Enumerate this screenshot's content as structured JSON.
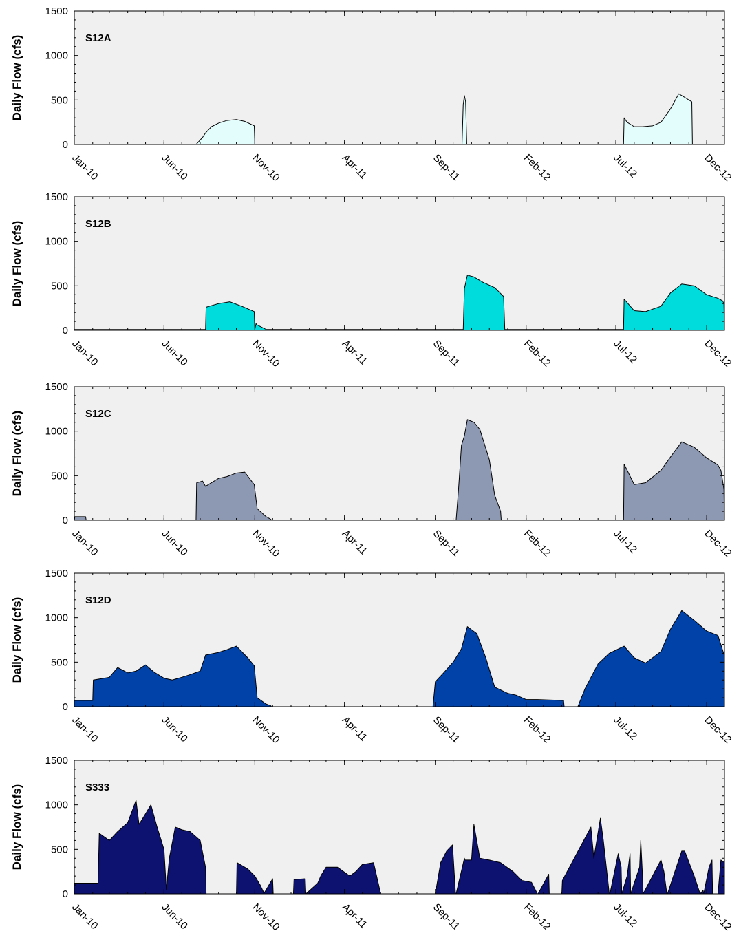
{
  "ylabel": "Daily Flow (cfs)",
  "chart_data": [
    {
      "type": "area",
      "title": "S12A",
      "ylabel": "Daily Flow (cfs)",
      "ylim": [
        0,
        1500
      ],
      "yticks": [
        0,
        500,
        1000,
        1500
      ],
      "xlim": [
        "2010-01-01",
        "2012-12-31"
      ],
      "xtick_labels": [
        "Jan-10",
        "Jun-10",
        "Nov-10",
        "Apr-11",
        "Sep-11",
        "Feb-12",
        "Jul-12",
        "Dec-12"
      ],
      "grid": false,
      "fill": "#e3fdfd",
      "stroke": "#000000",
      "series": [
        {
          "x": [
            "2010-01-01",
            "2010-07-25",
            "2010-08-05",
            "2010-08-10",
            "2010-08-20",
            "2010-09-01",
            "2010-09-15",
            "2010-10-01",
            "2010-10-15",
            "2010-10-31",
            "2010-11-01",
            "2011-10-16",
            "2011-10-18",
            "2011-10-20",
            "2011-10-22",
            "2011-10-24",
            "2012-07-14",
            "2012-07-15",
            "2012-07-20",
            "2012-08-01",
            "2012-08-15",
            "2012-09-01",
            "2012-09-15",
            "2012-10-01",
            "2012-10-15",
            "2012-10-25",
            "2012-11-01",
            "2012-11-06",
            "2012-11-07",
            "2012-12-31"
          ],
          "y": [
            0,
            0,
            80,
            130,
            200,
            240,
            270,
            280,
            260,
            210,
            0,
            0,
            450,
            550,
            480,
            0,
            0,
            300,
            250,
            200,
            200,
            210,
            250,
            400,
            570,
            530,
            500,
            480,
            0,
            0
          ]
        }
      ]
    },
    {
      "type": "area",
      "title": "S12B",
      "ylabel": "Daily Flow (cfs)",
      "ylim": [
        0,
        1500
      ],
      "yticks": [
        0,
        500,
        1000,
        1500
      ],
      "xlim": [
        "2010-01-01",
        "2012-12-31"
      ],
      "xtick_labels": [
        "Jan-10",
        "Jun-10",
        "Nov-10",
        "Apr-11",
        "Sep-11",
        "Feb-12",
        "Jul-12",
        "Dec-12"
      ],
      "grid": false,
      "fill": "#00dcdc",
      "stroke": "#000000",
      "series": [
        {
          "x": [
            "2010-01-01",
            "2010-08-10",
            "2010-08-11",
            "2010-09-01",
            "2010-09-20",
            "2010-10-10",
            "2010-10-31",
            "2010-11-01",
            "2010-11-03",
            "2010-11-05",
            "2010-11-20",
            "2010-11-21",
            "2011-10-18",
            "2011-10-20",
            "2011-10-25",
            "2011-11-05",
            "2011-11-20",
            "2011-12-10",
            "2011-12-25",
            "2011-12-27",
            "2012-07-14",
            "2012-07-15",
            "2012-08-01",
            "2012-08-20",
            "2012-09-15",
            "2012-10-01",
            "2012-10-20",
            "2012-11-10",
            "2012-12-01",
            "2012-12-20",
            "2012-12-28",
            "2012-12-30",
            "2012-12-31"
          ],
          "y": [
            10,
            10,
            260,
            300,
            320,
            270,
            210,
            10,
            75,
            60,
            10,
            10,
            10,
            470,
            620,
            600,
            540,
            480,
            380,
            10,
            10,
            350,
            220,
            210,
            270,
            420,
            520,
            500,
            400,
            360,
            330,
            300,
            10
          ]
        }
      ]
    },
    {
      "type": "area",
      "title": "S12C",
      "ylabel": "Daily Flow (cfs)",
      "ylim": [
        0,
        1500
      ],
      "yticks": [
        0,
        500,
        1000,
        1500
      ],
      "xlim": [
        "2010-01-01",
        "2012-12-31"
      ],
      "xtick_labels": [
        "Jan-10",
        "Jun-10",
        "Nov-10",
        "Apr-11",
        "Sep-11",
        "Feb-12",
        "Jul-12",
        "Dec-12"
      ],
      "grid": false,
      "fill": "#8d98b2",
      "stroke": "#000000",
      "series": [
        {
          "x": [
            "2010-01-01",
            "2010-01-02",
            "2010-01-20",
            "2010-01-21",
            "2010-07-25",
            "2010-07-26",
            "2010-08-05",
            "2010-08-10",
            "2010-09-01",
            "2010-09-15",
            "2010-10-01",
            "2010-10-15",
            "2010-10-31",
            "2010-11-05",
            "2010-11-20",
            "2010-11-28",
            "2010-11-29",
            "2011-10-06",
            "2011-10-10",
            "2011-10-15",
            "2011-10-20",
            "2011-10-25",
            "2011-11-05",
            "2011-11-15",
            "2011-12-01",
            "2011-12-10",
            "2011-12-20",
            "2011-12-21",
            "2012-07-14",
            "2012-07-15",
            "2012-08-01",
            "2012-08-20",
            "2012-09-15",
            "2012-10-01",
            "2012-10-20",
            "2012-11-10",
            "2012-12-01",
            "2012-12-20",
            "2012-12-25",
            "2012-12-30",
            "2012-12-31"
          ],
          "y": [
            0,
            40,
            40,
            0,
            0,
            420,
            440,
            380,
            470,
            490,
            530,
            540,
            400,
            130,
            40,
            10,
            0,
            0,
            340,
            840,
            950,
            1130,
            1100,
            1020,
            680,
            280,
            100,
            0,
            0,
            630,
            400,
            420,
            560,
            710,
            880,
            820,
            700,
            620,
            560,
            350,
            0
          ]
        }
      ]
    },
    {
      "type": "area",
      "title": "S12D",
      "ylabel": "Daily Flow (cfs)",
      "ylim": [
        0,
        1500
      ],
      "yticks": [
        0,
        500,
        1000,
        1500
      ],
      "xlim": [
        "2010-01-01",
        "2012-12-31"
      ],
      "xtick_labels": [
        "Jan-10",
        "Jun-10",
        "Nov-10",
        "Apr-11",
        "Sep-11",
        "Feb-12",
        "Jul-12",
        "Dec-12"
      ],
      "grid": false,
      "fill": "#0042a8",
      "stroke": "#000000",
      "series": [
        {
          "x": [
            "2010-01-01",
            "2010-02-01",
            "2010-02-02",
            "2010-03-01",
            "2010-03-15",
            "2010-04-01",
            "2010-04-15",
            "2010-05-01",
            "2010-05-15",
            "2010-06-01",
            "2010-06-15",
            "2010-07-01",
            "2010-07-15",
            "2010-08-01",
            "2010-08-10",
            "2010-09-01",
            "2010-09-15",
            "2010-10-01",
            "2010-10-20",
            "2010-10-31",
            "2010-11-05",
            "2010-11-20",
            "2010-11-28",
            "2010-11-29",
            "2011-08-28",
            "2011-09-01",
            "2011-09-15",
            "2011-10-01",
            "2011-10-15",
            "2011-10-25",
            "2011-11-10",
            "2011-11-25",
            "2011-12-10",
            "2012-01-01",
            "2012-01-15",
            "2012-02-01",
            "2012-02-20",
            "2012-04-04",
            "2012-04-05",
            "2012-04-28",
            "2012-05-10",
            "2012-06-01",
            "2012-06-20",
            "2012-07-15",
            "2012-08-01",
            "2012-08-20",
            "2012-09-15",
            "2012-10-01",
            "2012-10-20",
            "2012-11-10",
            "2012-12-01",
            "2012-12-20",
            "2012-12-31"
          ],
          "y": [
            70,
            70,
            300,
            330,
            440,
            380,
            400,
            470,
            390,
            320,
            300,
            330,
            360,
            400,
            580,
            610,
            640,
            680,
            550,
            460,
            100,
            30,
            10,
            0,
            0,
            280,
            380,
            500,
            650,
            900,
            820,
            550,
            220,
            150,
            130,
            80,
            80,
            70,
            0,
            0,
            200,
            480,
            600,
            680,
            550,
            490,
            620,
            870,
            1080,
            970,
            850,
            800,
            570
          ]
        }
      ]
    },
    {
      "type": "area",
      "title": "S333",
      "ylabel": "Daily Flow (cfs)",
      "ylim": [
        0,
        1500
      ],
      "yticks": [
        0,
        500,
        1000,
        1500
      ],
      "xlim": [
        "2010-01-01",
        "2012-12-31"
      ],
      "xtick_labels": [
        "Jan-10",
        "Jun-10",
        "Nov-10",
        "Apr-11",
        "Sep-11",
        "Feb-12",
        "Jul-12",
        "Dec-12"
      ],
      "grid": false,
      "fill": "#0d1270",
      "stroke": "#000000",
      "series": [
        {
          "x": [
            "2010-01-01",
            "2010-02-10",
            "2010-02-12",
            "2010-03-01",
            "2010-03-15",
            "2010-04-01",
            "2010-04-15",
            "2010-04-20",
            "2010-05-01",
            "2010-05-10",
            "2010-05-20",
            "2010-06-01",
            "2010-06-05",
            "2010-06-10",
            "2010-06-20",
            "2010-07-01",
            "2010-07-15",
            "2010-08-01",
            "2010-08-10",
            "2010-08-11",
            "2010-10-01",
            "2010-10-02",
            "2010-10-20",
            "2010-11-01",
            "2010-11-10",
            "2010-11-15",
            "2010-11-16",
            "2010-12-01",
            "2010-12-02",
            "2011-01-05",
            "2011-01-06",
            "2011-01-25",
            "2011-01-26",
            "2011-02-15",
            "2011-02-20",
            "2011-03-01",
            "2011-03-20",
            "2011-04-10",
            "2011-04-20",
            "2011-05-01",
            "2011-05-20",
            "2011-06-01",
            "2011-06-02",
            "2011-09-01",
            "2011-09-10",
            "2011-09-20",
            "2011-09-30",
            "2011-10-05",
            "2011-10-06",
            "2011-10-20",
            "2011-10-21",
            "2011-11-01",
            "2011-11-05",
            "2011-11-15",
            "2011-12-01",
            "2011-12-20",
            "2012-01-10",
            "2012-01-25",
            "2012-02-10",
            "2012-02-20",
            "2012-02-21",
            "2012-03-10",
            "2012-03-11",
            "2012-04-01",
            "2012-04-02",
            "2012-05-20",
            "2012-05-25",
            "2012-06-05",
            "2012-06-10",
            "2012-06-15",
            "2012-06-20",
            "2012-06-21",
            "2012-07-05",
            "2012-07-10",
            "2012-07-11",
            "2012-07-20",
            "2012-07-25",
            "2012-07-26",
            "2012-08-10",
            "2012-08-12",
            "2012-08-15",
            "2012-08-16",
            "2012-09-15",
            "2012-09-20",
            "2012-09-25",
            "2012-09-26",
            "2012-10-20",
            "2012-10-25",
            "2012-11-10",
            "2012-11-20",
            "2012-11-25",
            "2012-11-26",
            "2012-12-05",
            "2012-12-10",
            "2012-12-11",
            "2012-12-20",
            "2012-12-25",
            "2012-12-31"
          ],
          "y": [
            120,
            120,
            680,
            600,
            700,
            800,
            1050,
            780,
            900,
            1000,
            760,
            500,
            50,
            400,
            750,
            720,
            700,
            600,
            300,
            0,
            0,
            350,
            280,
            200,
            100,
            30,
            0,
            170,
            0,
            0,
            160,
            170,
            0,
            120,
            200,
            300,
            300,
            200,
            250,
            330,
            350,
            0,
            0,
            0,
            350,
            480,
            550,
            0,
            0,
            400,
            380,
            380,
            780,
            400,
            380,
            350,
            250,
            150,
            130,
            0,
            0,
            220,
            0,
            0,
            150,
            750,
            400,
            850,
            600,
            300,
            0,
            0,
            450,
            300,
            0,
            200,
            450,
            0,
            300,
            600,
            200,
            0,
            380,
            250,
            0,
            0,
            480,
            480,
            200,
            0,
            40,
            0,
            300,
            380,
            0,
            0,
            380,
            350
          ]
        }
      ]
    }
  ]
}
